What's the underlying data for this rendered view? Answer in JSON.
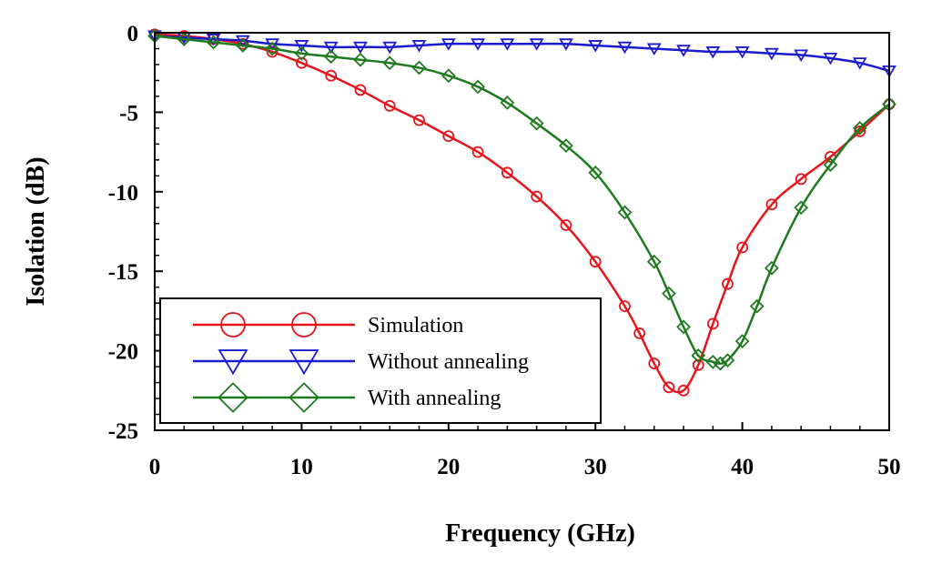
{
  "chart_data": {
    "type": "line",
    "title": "",
    "xlabel": "Frequency (GHz)",
    "ylabel": "Isolation (dB)",
    "xlim": [
      0,
      50
    ],
    "ylim": [
      -25,
      0
    ],
    "xticks": [
      0,
      10,
      20,
      30,
      40,
      50
    ],
    "yticks": [
      0,
      -5,
      -10,
      -15,
      -20,
      -25
    ],
    "xtick_labels": [
      "0",
      "10",
      "20",
      "30",
      "40",
      "50"
    ],
    "ytick_labels": [
      "0",
      "-5",
      "-10",
      "-15",
      "-20",
      "-25"
    ],
    "grid": false,
    "legend_position": "bottom-left",
    "series": [
      {
        "name": "Simulation",
        "color": "#e8141c",
        "marker": "circle",
        "x": [
          0,
          2,
          4,
          6,
          8,
          10,
          12,
          14,
          16,
          18,
          20,
          22,
          24,
          26,
          28,
          30,
          32,
          33,
          34,
          35,
          36,
          37,
          38,
          39,
          40,
          42,
          44,
          46,
          48,
          50
        ],
        "y": [
          -0.1,
          -0.2,
          -0.4,
          -0.7,
          -1.2,
          -1.9,
          -2.7,
          -3.6,
          -4.6,
          -5.5,
          -6.5,
          -7.5,
          -8.8,
          -10.3,
          -12.1,
          -14.4,
          -17.2,
          -18.9,
          -20.8,
          -22.3,
          -22.5,
          -20.9,
          -18.3,
          -15.8,
          -13.5,
          -10.8,
          -9.2,
          -7.8,
          -6.2,
          -4.5
        ]
      },
      {
        "name": "Without annealing",
        "color": "#1a1ad0",
        "marker": "triangle-down",
        "x": [
          0,
          2,
          4,
          6,
          8,
          10,
          12,
          14,
          16,
          18,
          20,
          22,
          24,
          26,
          28,
          30,
          32,
          34,
          36,
          38,
          40,
          42,
          44,
          46,
          48,
          50
        ],
        "y": [
          -0.2,
          -0.3,
          -0.4,
          -0.5,
          -0.7,
          -0.8,
          -0.9,
          -0.9,
          -0.9,
          -0.8,
          -0.7,
          -0.7,
          -0.7,
          -0.7,
          -0.7,
          -0.8,
          -0.9,
          -1.0,
          -1.1,
          -1.2,
          -1.2,
          -1.3,
          -1.4,
          -1.6,
          -1.9,
          -2.4
        ]
      },
      {
        "name": "With annealing",
        "color": "#1e7a1e",
        "marker": "diamond",
        "x": [
          0,
          2,
          4,
          6,
          8,
          10,
          12,
          14,
          16,
          18,
          20,
          22,
          24,
          26,
          28,
          30,
          32,
          34,
          35,
          36,
          37,
          38,
          38.5,
          39,
          40,
          41,
          42,
          44,
          46,
          48,
          50
        ],
        "y": [
          -0.2,
          -0.4,
          -0.6,
          -0.8,
          -1.0,
          -1.3,
          -1.5,
          -1.7,
          -1.9,
          -2.2,
          -2.7,
          -3.4,
          -4.4,
          -5.7,
          -7.1,
          -8.8,
          -11.3,
          -14.4,
          -16.4,
          -18.5,
          -20.3,
          -20.7,
          -20.8,
          -20.6,
          -19.4,
          -17.2,
          -14.8,
          -11.0,
          -8.3,
          -6.0,
          -4.5
        ]
      }
    ]
  }
}
